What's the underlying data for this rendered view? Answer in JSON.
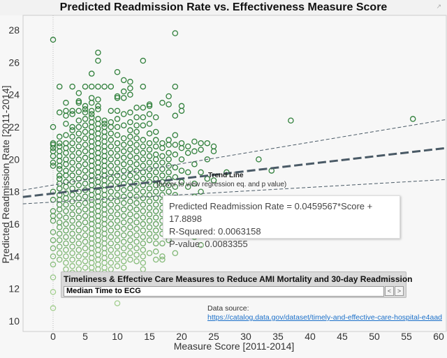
{
  "chart_data": {
    "type": "scatter",
    "title": "Predicted Readmission Rate vs. Effectiveness Measure Score",
    "xlabel": "Measure Score [2011-2014]",
    "ylabel": "Predicted Readmission Rate [2011-2014]",
    "xlim": [
      -4.7,
      61
    ],
    "ylim": [
      9.4,
      29
    ],
    "xticks": [
      0,
      5,
      10,
      15,
      20,
      25,
      30,
      35,
      40,
      45,
      50,
      55,
      60
    ],
    "yticks": [
      10,
      12,
      14,
      16,
      18,
      20,
      22,
      24,
      26,
      28
    ],
    "grid": false,
    "marker": "hollow-circle",
    "colors": {
      "high": "#2f7f3a",
      "low": "#a3cf8f",
      "trend": "#4a5a66"
    },
    "trend": {
      "slope": 0.0459567,
      "intercept": 17.8898,
      "band_upper": [
        [
          -4.7,
          18.1
        ],
        [
          61,
          22.45
        ]
      ],
      "band_lower": [
        [
          -4.7,
          17.25
        ],
        [
          61,
          18.75
        ]
      ]
    },
    "columns": [
      {
        "x": 0,
        "y": [
          27.4,
          22.0,
          21.0,
          20.9,
          20.7,
          20.5,
          20.2,
          19.8,
          19.6,
          18.0,
          17.5,
          16.8,
          16.5,
          16.2,
          15.5,
          15.0,
          14.5,
          14.0,
          13.5,
          12.7,
          11.8,
          10.8
        ]
      },
      {
        "x": 1,
        "y": [
          24.5,
          22.9,
          21.4,
          21.0,
          20.8,
          20.5,
          20.2,
          19.9,
          19.6,
          19.4,
          19.0,
          18.8,
          18.5,
          18.2,
          17.8,
          17.5,
          17.2,
          16.9,
          16.5,
          16.1,
          15.8,
          15.4,
          15.0,
          14.6,
          14.2,
          13.8
        ]
      },
      {
        "x": 2,
        "y": [
          23.5,
          23.0,
          22.7,
          22.2,
          21.5,
          21.0,
          20.7,
          20.4,
          20.0,
          19.7,
          19.3,
          19.0,
          18.6,
          18.3,
          17.9,
          17.6,
          17.2,
          16.8,
          16.4,
          16.0,
          15.6,
          15.2,
          14.8,
          14.4,
          14.0,
          13.6,
          13.2
        ]
      },
      {
        "x": 3,
        "y": [
          24.5,
          23.0,
          22.8,
          22.0,
          21.8,
          21.4,
          21.0,
          20.6,
          20.2,
          19.8,
          19.4,
          19.0,
          18.6,
          18.2,
          17.8,
          17.4,
          17.0,
          16.6,
          16.2,
          15.8,
          15.4,
          15.0,
          14.6,
          14.2,
          13.8,
          13.4,
          13.0,
          12.6
        ]
      },
      {
        "x": 4,
        "y": [
          24.1,
          23.6,
          23.5,
          23.0,
          22.4,
          22.0,
          21.6,
          21.2,
          20.8,
          20.4,
          20.0,
          19.6,
          19.2,
          18.8,
          18.4,
          18.0,
          17.6,
          17.2,
          16.8,
          16.4,
          16.0,
          15.6,
          15.2,
          14.8,
          14.4,
          14.0,
          13.6,
          13.2,
          12.8
        ]
      },
      {
        "x": 5,
        "y": [
          24.5,
          23.3,
          23.1,
          22.9,
          22.5,
          22.1,
          21.7,
          21.3,
          20.9,
          20.5,
          20.1,
          19.7,
          19.3,
          18.9,
          18.5,
          18.1,
          17.7,
          17.3,
          16.9,
          16.5,
          16.1,
          15.7,
          15.3,
          14.9,
          14.5,
          14.1,
          13.7,
          13.3,
          12.9,
          12.5
        ]
      },
      {
        "x": 6,
        "y": [
          25.3,
          24.5,
          23.8,
          23.5,
          23.0,
          22.8,
          22.6,
          22.3,
          22.0,
          21.7,
          21.4,
          21.1,
          20.8,
          20.5,
          20.2,
          19.9,
          19.6,
          19.3,
          19.0,
          18.7,
          18.4,
          18.1,
          17.8,
          17.5,
          17.2,
          16.9,
          16.6,
          16.3,
          16.0,
          15.7,
          15.4,
          15.1,
          14.8,
          14.5,
          14.2,
          13.9,
          13.6,
          13.3,
          13.0,
          12.7,
          12.4
        ]
      },
      {
        "x": 7,
        "y": [
          26.6,
          26.1,
          24.5,
          23.7,
          23.3,
          23.1,
          22.5,
          22.2,
          21.9,
          21.6,
          21.3,
          21.0,
          20.7,
          20.4,
          20.1,
          19.8,
          19.5,
          19.2,
          18.9,
          18.6,
          18.3,
          18.0,
          17.7,
          17.4,
          17.1,
          16.8,
          16.5,
          16.2,
          15.9,
          15.6,
          15.3,
          15.0,
          14.7,
          14.4,
          14.1,
          13.8,
          13.5,
          13.2,
          12.9,
          12.6
        ]
      },
      {
        "x": 8,
        "y": [
          24.5,
          22.4,
          22.2,
          22.0,
          21.7,
          21.4,
          21.1,
          20.8,
          20.5,
          20.2,
          19.9,
          19.6,
          19.3,
          19.0,
          18.7,
          18.4,
          18.1,
          17.8,
          17.5,
          17.2,
          16.9,
          16.6,
          16.3,
          16.0,
          15.7,
          15.4,
          15.1,
          14.8,
          14.5,
          14.2,
          13.9,
          13.6,
          13.3,
          13.0,
          12.7
        ]
      },
      {
        "x": 9,
        "y": [
          24.5,
          23.0,
          22.3,
          22.0,
          21.6,
          21.2,
          20.8,
          20.4,
          20.0,
          19.6,
          19.2,
          18.8,
          18.4,
          18.0,
          17.6,
          17.2,
          16.8,
          16.4,
          16.0,
          15.6,
          15.2,
          14.8,
          14.4,
          14.0,
          13.6,
          13.2,
          12.8
        ]
      },
      {
        "x": 10,
        "y": [
          25.4,
          23.9,
          23.8,
          23.0,
          22.5,
          22.0,
          21.5,
          21.0,
          20.6,
          20.2,
          19.8,
          19.4,
          19.0,
          18.6,
          18.2,
          17.8,
          17.4,
          17.0,
          16.6,
          16.2,
          15.8,
          15.4,
          15.0,
          14.6,
          14.2,
          13.8,
          13.4,
          11.1
        ]
      },
      {
        "x": 11,
        "y": [
          24.9,
          24.2,
          23.8,
          22.8,
          22.1,
          21.3,
          20.9,
          20.5,
          20.1,
          19.7,
          19.3,
          18.9,
          18.5,
          18.1,
          17.7,
          17.3,
          16.9,
          16.5,
          16.1,
          15.7,
          15.3,
          14.9,
          14.5,
          14.1,
          13.7,
          13.3
        ]
      },
      {
        "x": 12,
        "y": [
          24.8,
          24.4,
          24.0,
          22.9,
          22.3,
          21.8,
          21.4,
          21.0,
          20.6,
          20.2,
          19.8,
          19.4,
          19.0,
          18.6,
          18.2,
          17.8,
          17.4,
          17.0,
          16.6,
          16.2,
          15.8,
          15.4,
          15.0,
          14.6,
          14.2,
          13.8
        ]
      },
      {
        "x": 13,
        "y": [
          23.2,
          22.6,
          22.1,
          21.7,
          21.3,
          20.9,
          20.5,
          20.1,
          19.7,
          19.3,
          18.9,
          18.5,
          18.1,
          17.7,
          17.3,
          16.9,
          16.5,
          16.1,
          15.7,
          15.3,
          14.9,
          14.5,
          14.1,
          13.7
        ]
      },
      {
        "x": 14,
        "y": [
          26.1,
          24.5,
          23.2,
          22.6,
          22.1,
          21.2,
          20.8,
          20.4,
          20.0,
          19.6,
          19.2,
          18.8,
          18.4,
          18.0,
          17.6,
          17.2,
          16.8,
          16.4,
          16.0,
          15.6,
          15.2,
          14.8,
          14.4,
          14.0,
          13.6,
          13.2
        ]
      },
      {
        "x": 15,
        "y": [
          23.4,
          23.3,
          22.8,
          22.2,
          21.6,
          21.0,
          20.6,
          20.2,
          19.8,
          19.4,
          19.0,
          18.6,
          18.2,
          17.8,
          17.4,
          17.0,
          16.6,
          16.2,
          15.8,
          15.4,
          15.0,
          14.2
        ]
      },
      {
        "x": 16,
        "y": [
          22.6,
          21.7,
          21.2,
          20.8,
          20.3,
          20.0,
          19.6,
          19.2,
          18.8,
          18.4,
          18.0,
          17.6,
          17.2,
          16.8,
          16.4,
          16.0,
          15.6,
          15.2,
          14.8,
          14.3,
          13.8
        ]
      },
      {
        "x": 17,
        "y": [
          23.5,
          21.0,
          20.7,
          20.2,
          19.8,
          19.4,
          19.0,
          18.6,
          18.2,
          17.8,
          17.4,
          17.0,
          16.6,
          16.2,
          15.8,
          15.4,
          14.8,
          14.0,
          13.8
        ]
      },
      {
        "x": 18,
        "y": [
          23.9,
          23.4,
          21.2,
          20.9,
          20.4,
          20.0,
          19.6,
          19.2,
          18.8,
          18.4,
          18.0,
          17.6,
          17.2,
          16.8,
          16.4,
          16.0,
          15.5,
          15.0
        ]
      },
      {
        "x": 19,
        "y": [
          27.8,
          24.5,
          22.7,
          21.5,
          20.9,
          20.3,
          19.5,
          18.9,
          18.3,
          17.8,
          17.2,
          16.6,
          16.0,
          15.3,
          14.2
        ]
      },
      {
        "x": 20,
        "y": [
          23.3,
          23.0,
          21.0,
          20.7,
          20.0,
          19.3,
          18.6,
          17.5,
          16.8,
          16.2,
          15.5
        ]
      },
      {
        "x": 21,
        "y": [
          20.8,
          20.4,
          19.2,
          18.3,
          17.3,
          16.4,
          15.8
        ]
      },
      {
        "x": 22,
        "y": [
          21.1,
          20.5,
          19.7,
          18.5,
          17.7,
          16.6,
          15.2
        ]
      },
      {
        "x": 23,
        "y": [
          21.0,
          20.6,
          19.2,
          18.0,
          16.5,
          14.7
        ]
      },
      {
        "x": 24,
        "y": [
          21.0,
          20.0,
          18.8
        ]
      },
      {
        "x": 25,
        "y": [
          20.8,
          20.5,
          18.7
        ]
      },
      {
        "x": 27,
        "y": [
          19.2
        ]
      },
      {
        "x": 32,
        "y": [
          20.0
        ]
      },
      {
        "x": 34,
        "y": [
          19.3
        ]
      },
      {
        "x": 37,
        "y": [
          22.4
        ]
      },
      {
        "x": 56,
        "y": [
          22.5
        ]
      }
    ]
  },
  "annotations": {
    "trend_label": "Trend Line",
    "trend_hint": "(hover to view regression eq. and p value)"
  },
  "tooltip": {
    "equation": "Predicted Readmission Rate = 0.0459567*Score + 17.8898",
    "r_squared": "R-Squared: 0.0063158",
    "p_value": "P-value: 0.0083355"
  },
  "filter": {
    "title": "Timeliness & Effective Care Measures to Reduce AMI Mortality and 30-day Readmission",
    "selected": "Median Time to ECG",
    "prev": "<",
    "next": ">"
  },
  "source": {
    "label": "Data source:",
    "link": "https://catalog.data.gov/dataset/timely-and-effective-care-hospital-e4aad"
  }
}
